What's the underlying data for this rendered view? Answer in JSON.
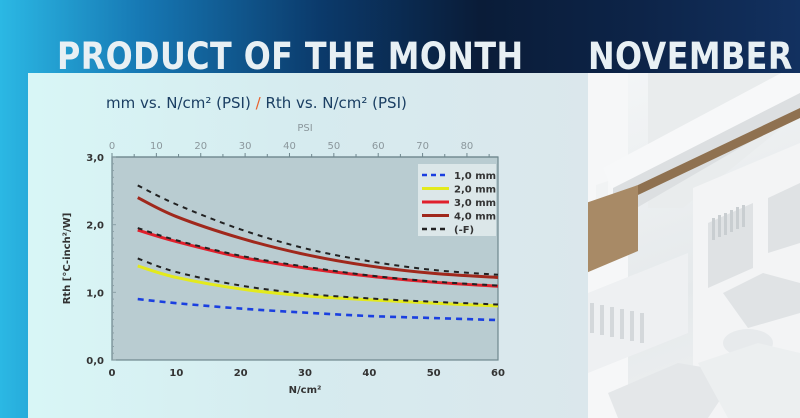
{
  "banner": {
    "title_left": "PRODUCT OF THE MONTH",
    "title_right": "NOVEMBER"
  },
  "chart_heading": {
    "part1": "mm vs. N/cm² (PSI) ",
    "slash": "/",
    "part2": " Rth vs. N/cm² (PSI)"
  },
  "colors": {
    "accent_slash": "#e8612c",
    "series_1mm": "#1a3fe0",
    "series_2mm": "#e3ea1c",
    "series_3mm": "#e0202c",
    "series_4mm": "#a0281c",
    "series_F": "#222222"
  },
  "chart_data": {
    "type": "line",
    "title": "mm vs. N/cm² (PSI) / Rth vs. N/cm² (PSI)",
    "xlabel": "N/cm²",
    "x2label": "PSI",
    "ylabel": "Rth [°C-inch²/W]",
    "xlim": [
      0,
      60
    ],
    "x2lim": [
      0,
      87
    ],
    "ylim": [
      0.0,
      3.0
    ],
    "x_ticks": [
      "0",
      "10",
      "20",
      "30",
      "40",
      "50",
      "60"
    ],
    "x2_ticks": [
      "0",
      "10",
      "20",
      "30",
      "40",
      "50",
      "60",
      "70",
      "80"
    ],
    "y_ticks": [
      "0,0",
      "1,0",
      "2,0",
      "3,0"
    ],
    "grid": false,
    "legend_position": "upper right",
    "x": [
      4,
      10,
      20,
      30,
      40,
      50,
      60
    ],
    "series": [
      {
        "name": "1,0 mm",
        "style": "dashed",
        "color": "#1a3fe0",
        "values": [
          0.9,
          0.84,
          0.76,
          0.7,
          0.65,
          0.62,
          0.59
        ]
      },
      {
        "name": "2,0 mm",
        "style": "solid",
        "color": "#e3ea1c",
        "values": [
          1.39,
          1.22,
          1.05,
          0.95,
          0.89,
          0.84,
          0.8
        ]
      },
      {
        "name": "3,0 mm",
        "style": "solid",
        "color": "#e0202c",
        "values": [
          1.92,
          1.75,
          1.52,
          1.36,
          1.24,
          1.15,
          1.09
        ]
      },
      {
        "name": "4,0 mm",
        "style": "solid",
        "color": "#a0281c",
        "values": [
          2.4,
          2.12,
          1.8,
          1.56,
          1.39,
          1.28,
          1.22
        ]
      },
      {
        "name": "(-F)",
        "style": "dashed",
        "color": "#222222",
        "values_sets": [
          [
            2.58,
            2.3,
            1.93,
            1.65,
            1.46,
            1.33,
            1.26
          ],
          [
            1.95,
            1.77,
            1.54,
            1.38,
            1.25,
            1.16,
            1.1
          ],
          [
            1.5,
            1.3,
            1.1,
            0.98,
            0.91,
            0.86,
            0.82
          ]
        ]
      }
    ]
  }
}
